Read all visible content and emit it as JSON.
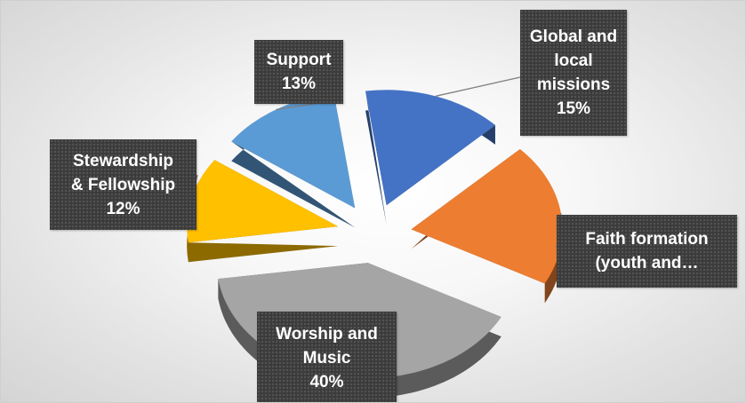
{
  "chart_data": {
    "type": "pie",
    "title": "",
    "labels_shown": [
      "Global and local missions",
      "Faith formation (youth and…",
      "Worship and Music",
      "Stewardship & Fellowship",
      "Support"
    ],
    "slices": [
      {
        "label": "Global and local missions",
        "value": 15,
        "display": "15%",
        "color": "#4472C4"
      },
      {
        "label": "Faith formation (youth and…",
        "value": 20,
        "display": "",
        "color": "#ED7D31"
      },
      {
        "label": "Worship and Music",
        "value": 40,
        "display": "40%",
        "color": "#A5A5A5"
      },
      {
        "label": "Stewardship & Fellowship",
        "value": 12,
        "display": "12%",
        "color": "#FFC000"
      },
      {
        "label": "Support",
        "value": 13,
        "display": "13%",
        "color": "#5B9BD5"
      }
    ],
    "legend": "none",
    "style": "3d-exploded-pie",
    "data_labels": "callout"
  },
  "callouts": {
    "global": {
      "l1": "Global and",
      "l2": "local",
      "l3": "missions",
      "pct": "15%"
    },
    "faith": {
      "l1": "Faith formation",
      "l2": "(youth and…"
    },
    "worship": {
      "l1": "Worship and",
      "l2": "Music",
      "pct": "40%"
    },
    "stewardship": {
      "l1": "Stewardship",
      "l2": "& Fellowship",
      "pct": "12%"
    },
    "support": {
      "l1": "Support",
      "pct": "13%"
    }
  }
}
